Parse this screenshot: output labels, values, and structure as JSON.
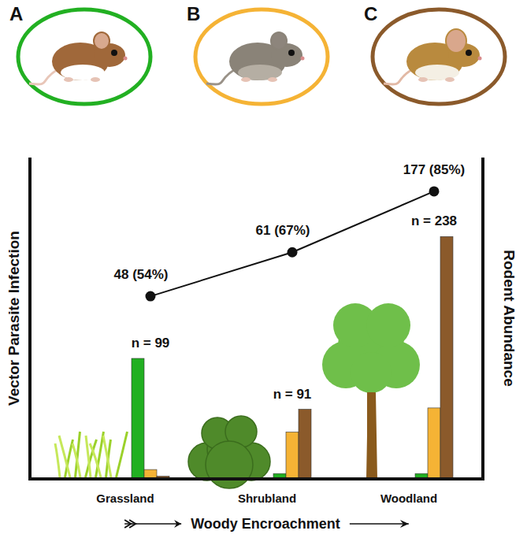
{
  "chart_data": {
    "type": "bar",
    "categories": [
      "Grassland",
      "Shrubland",
      "Woodland"
    ],
    "x_label": "Woody Encroachment",
    "y_label": "Vector Parasite Infection",
    "y2_label": "Rodent Abundance",
    "ylim": [
      0,
      95
    ],
    "y2lim": [
      0,
      240
    ],
    "tick_labels": false,
    "group_labels": [
      "n = 99",
      "n = 91",
      "n = 238"
    ],
    "series": [
      {
        "name": "A",
        "color": "#22b022",
        "axis": "y2",
        "values": [
          90,
          4,
          4
        ]
      },
      {
        "name": "B",
        "color": "#f5b335",
        "axis": "y2",
        "values": [
          7,
          35,
          53
        ]
      },
      {
        "name": "C",
        "color": "#8b5a2b",
        "axis": "y2",
        "values": [
          2,
          52,
          181
        ]
      },
      {
        "type": "line",
        "color": "#111111",
        "marker": "circle",
        "values": [
          54,
          67,
          85
        ],
        "value_labels": [
          "48 (54%)",
          "61 (67%)",
          "177 (85%)"
        ]
      }
    ]
  }
}
